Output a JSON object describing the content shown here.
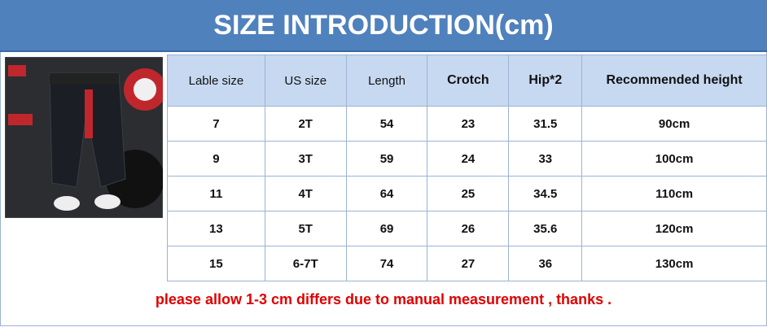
{
  "header": {
    "title": "SIZE INTRODUCTION(cm)"
  },
  "table": {
    "headers": [
      "Lable size",
      "US size",
      "Length",
      "Crotch",
      "Hip*2",
      "Recommended height"
    ],
    "rows": [
      [
        "7",
        "2T",
        "54",
        "23",
        "31.5",
        "90cm"
      ],
      [
        "9",
        "3T",
        "59",
        "24",
        "33",
        "100cm"
      ],
      [
        "11",
        "4T",
        "64",
        "25",
        "34.5",
        "110cm"
      ],
      [
        "13",
        "5T",
        "69",
        "26",
        "35.6",
        "120cm"
      ],
      [
        "15",
        "6-7T",
        "74",
        "27",
        "36",
        "130cm"
      ]
    ]
  },
  "footer": {
    "note": "please allow 1-3 cm differs due to manual measurement , thanks ."
  }
}
